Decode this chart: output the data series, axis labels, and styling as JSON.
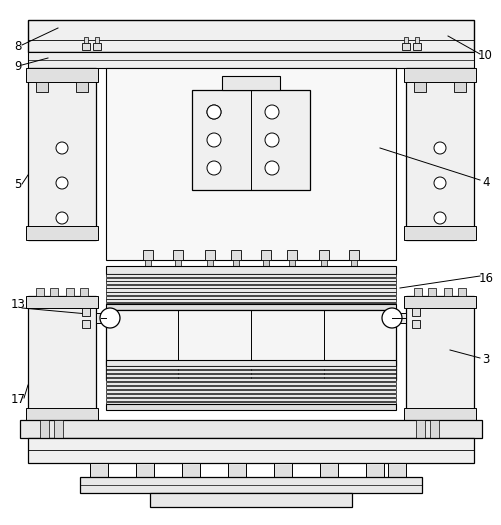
{
  "bg_color": "#ffffff",
  "lc": "#000000",
  "fc_light": "#f5f5f5",
  "fc_mid": "#e8e8e8",
  "fc_dark": "#d0d0d0"
}
